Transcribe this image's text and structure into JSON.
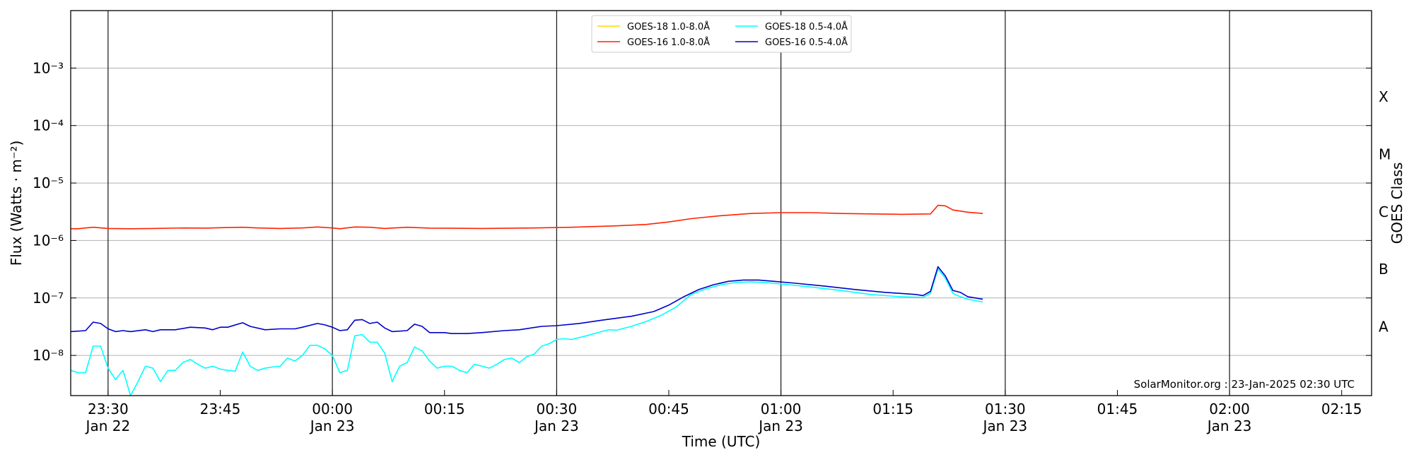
{
  "chart_data": {
    "type": "line",
    "xlabel": "Time (UTC)",
    "ylabel": "Flux (Watts · m⁻²)",
    "ylabel_right": "GOES Class",
    "y_scale": "log",
    "ylim": [
      2e-09,
      0.01
    ],
    "xlim": [
      "2025-01-22T23:25",
      "2025-01-23T02:19"
    ],
    "grid": "horizontal at decades",
    "legend_position": "top-center",
    "credit": "SolarMonitor.org : 23-Jan-2025 02:30 UTC",
    "y_ticks": [
      {
        "value": 1e-08,
        "label": "10⁻⁸"
      },
      {
        "value": 1e-07,
        "label": "10⁻⁷"
      },
      {
        "value": 1e-06,
        "label": "10⁻⁶"
      },
      {
        "value": 1e-05,
        "label": "10⁻⁵"
      },
      {
        "value": 0.0001,
        "label": "10⁻⁴"
      },
      {
        "value": 0.001,
        "label": "10⁻³"
      }
    ],
    "x_ticks": [
      {
        "time": "2025-01-22T23:30",
        "label": "23:30",
        "sublabel": "Jan 22",
        "vline": true
      },
      {
        "time": "2025-01-22T23:45",
        "label": "23:45",
        "sublabel": "",
        "vline": false
      },
      {
        "time": "2025-01-23T00:00",
        "label": "00:00",
        "sublabel": "Jan 23",
        "vline": true
      },
      {
        "time": "2025-01-23T00:15",
        "label": "00:15",
        "sublabel": "",
        "vline": false
      },
      {
        "time": "2025-01-23T00:30",
        "label": "00:30",
        "sublabel": "Jan 23",
        "vline": true
      },
      {
        "time": "2025-01-23T00:45",
        "label": "00:45",
        "sublabel": "",
        "vline": false
      },
      {
        "time": "2025-01-23T01:00",
        "label": "01:00",
        "sublabel": "Jan 23",
        "vline": true
      },
      {
        "time": "2025-01-23T01:15",
        "label": "01:15",
        "sublabel": "",
        "vline": false
      },
      {
        "time": "2025-01-23T01:30",
        "label": "01:30",
        "sublabel": "Jan 23",
        "vline": true
      },
      {
        "time": "2025-01-23T01:45",
        "label": "01:45",
        "sublabel": "",
        "vline": false
      },
      {
        "time": "2025-01-23T02:00",
        "label": "02:00",
        "sublabel": "Jan 23",
        "vline": true
      },
      {
        "time": "2025-01-23T02:15",
        "label": "02:15",
        "sublabel": "",
        "vline": false
      }
    ],
    "goes_classes": [
      {
        "label": "A",
        "value": 3.16e-08
      },
      {
        "label": "B",
        "value": 3.16e-07
      },
      {
        "label": "C",
        "value": 3.16e-06
      },
      {
        "label": "M",
        "value": 3.16e-05
      },
      {
        "label": "X",
        "value": 0.000316
      }
    ],
    "series": [
      {
        "name": "GOES-18 1.0-8.0Å",
        "color": "#ffd700",
        "points": []
      },
      {
        "name": "GOES-18 0.5-4.0Å",
        "color": "#00ffff",
        "points": [
          [
            "2025-01-22T23:25",
            5.5e-09
          ],
          [
            "2025-01-22T23:26",
            5e-09
          ],
          [
            "2025-01-22T23:27",
            5e-09
          ],
          [
            "2025-01-22T23:28",
            1.45e-08
          ],
          [
            "2025-01-22T23:29",
            1.45e-08
          ],
          [
            "2025-01-22T23:30",
            6e-09
          ],
          [
            "2025-01-22T23:31",
            3.8e-09
          ],
          [
            "2025-01-22T23:32",
            5.5e-09
          ],
          [
            "2025-01-22T23:33",
            2e-09
          ],
          [
            "2025-01-22T23:34",
            3.5e-09
          ],
          [
            "2025-01-22T23:35",
            6.5e-09
          ],
          [
            "2025-01-22T23:36",
            6e-09
          ],
          [
            "2025-01-22T23:37",
            3.5e-09
          ],
          [
            "2025-01-22T23:38",
            5.5e-09
          ],
          [
            "2025-01-22T23:39",
            5.5e-09
          ],
          [
            "2025-01-22T23:40",
            7.5e-09
          ],
          [
            "2025-01-22T23:41",
            8.5e-09
          ],
          [
            "2025-01-22T23:42",
            7e-09
          ],
          [
            "2025-01-22T23:43",
            6e-09
          ],
          [
            "2025-01-22T23:44",
            6.5e-09
          ],
          [
            "2025-01-22T23:45",
            5.8e-09
          ],
          [
            "2025-01-22T23:46",
            5.5e-09
          ],
          [
            "2025-01-22T23:47",
            5.3e-09
          ],
          [
            "2025-01-22T23:48",
            1.15e-08
          ],
          [
            "2025-01-22T23:49",
            6.5e-09
          ],
          [
            "2025-01-22T23:50",
            5.5e-09
          ],
          [
            "2025-01-22T23:51",
            6e-09
          ],
          [
            "2025-01-22T23:52",
            6.3e-09
          ],
          [
            "2025-01-22T23:53",
            6.5e-09
          ],
          [
            "2025-01-22T23:54",
            9e-09
          ],
          [
            "2025-01-22T23:55",
            8e-09
          ],
          [
            "2025-01-22T23:56",
            1e-08
          ],
          [
            "2025-01-22T23:57",
            1.5e-08
          ],
          [
            "2025-01-22T23:58",
            1.5e-08
          ],
          [
            "2025-01-22T23:59",
            1.3e-08
          ],
          [
            "2025-01-23T00:00",
            1e-08
          ],
          [
            "2025-01-23T00:01",
            5e-09
          ],
          [
            "2025-01-23T00:02",
            5.5e-09
          ],
          [
            "2025-01-23T00:03",
            2.2e-08
          ],
          [
            "2025-01-23T00:04",
            2.3e-08
          ],
          [
            "2025-01-23T00:05",
            1.7e-08
          ],
          [
            "2025-01-23T00:06",
            1.7e-08
          ],
          [
            "2025-01-23T00:07",
            1.1e-08
          ],
          [
            "2025-01-23T00:08",
            3.5e-09
          ],
          [
            "2025-01-23T00:09",
            6.5e-09
          ],
          [
            "2025-01-23T00:10",
            7.5e-09
          ],
          [
            "2025-01-23T00:11",
            1.4e-08
          ],
          [
            "2025-01-23T00:12",
            1.2e-08
          ],
          [
            "2025-01-23T00:13",
            8e-09
          ],
          [
            "2025-01-23T00:14",
            6e-09
          ],
          [
            "2025-01-23T00:15",
            6.5e-09
          ],
          [
            "2025-01-23T00:16",
            6.5e-09
          ],
          [
            "2025-01-23T00:17",
            5.5e-09
          ],
          [
            "2025-01-23T00:18",
            5e-09
          ],
          [
            "2025-01-23T00:19",
            7e-09
          ],
          [
            "2025-01-23T00:20",
            6.5e-09
          ],
          [
            "2025-01-23T00:21",
            6e-09
          ],
          [
            "2025-01-23T00:22",
            7e-09
          ],
          [
            "2025-01-23T00:23",
            8.5e-09
          ],
          [
            "2025-01-23T00:24",
            9e-09
          ],
          [
            "2025-01-23T00:25",
            7.5e-09
          ],
          [
            "2025-01-23T00:26",
            9.5e-09
          ],
          [
            "2025-01-23T00:27",
            1.05e-08
          ],
          [
            "2025-01-23T00:28",
            1.45e-08
          ],
          [
            "2025-01-23T00:29",
            1.6e-08
          ],
          [
            "2025-01-23T00:30",
            1.9e-08
          ],
          [
            "2025-01-23T00:31",
            1.95e-08
          ],
          [
            "2025-01-23T00:32",
            1.9e-08
          ],
          [
            "2025-01-23T00:34",
            2.2e-08
          ],
          [
            "2025-01-23T00:36",
            2.6e-08
          ],
          [
            "2025-01-23T00:37",
            2.8e-08
          ],
          [
            "2025-01-23T00:38",
            2.75e-08
          ],
          [
            "2025-01-23T00:40",
            3.2e-08
          ],
          [
            "2025-01-23T00:42",
            3.9e-08
          ],
          [
            "2025-01-23T00:44",
            5e-08
          ],
          [
            "2025-01-23T00:46",
            7e-08
          ],
          [
            "2025-01-23T00:48",
            1.15e-07
          ],
          [
            "2025-01-23T00:50",
            1.45e-07
          ],
          [
            "2025-01-23T00:52",
            1.7e-07
          ],
          [
            "2025-01-23T00:54",
            1.85e-07
          ],
          [
            "2025-01-23T00:56",
            1.9e-07
          ],
          [
            "2025-01-23T00:58",
            1.85e-07
          ],
          [
            "2025-01-23T01:00",
            1.75e-07
          ],
          [
            "2025-01-23T01:04",
            1.55e-07
          ],
          [
            "2025-01-23T01:08",
            1.35e-07
          ],
          [
            "2025-01-23T01:12",
            1.15e-07
          ],
          [
            "2025-01-23T01:16",
            1.05e-07
          ],
          [
            "2025-01-23T01:19",
            1.02e-07
          ],
          [
            "2025-01-23T01:20",
            1.2e-07
          ],
          [
            "2025-01-23T01:21",
            3.2e-07
          ],
          [
            "2025-01-23T01:22",
            2.2e-07
          ],
          [
            "2025-01-23T01:23",
            1.2e-07
          ],
          [
            "2025-01-23T01:24",
            1.05e-07
          ],
          [
            "2025-01-23T01:25",
            9.5e-08
          ],
          [
            "2025-01-23T01:27",
            8.5e-08
          ]
        ]
      },
      {
        "name": "GOES-16 1.0-8.0Å",
        "color": "#ff2200",
        "points": [
          [
            "2025-01-22T23:25",
            1.6e-06
          ],
          [
            "2025-01-22T23:26",
            1.6e-06
          ],
          [
            "2025-01-22T23:27",
            1.65e-06
          ],
          [
            "2025-01-22T23:28",
            1.7e-06
          ],
          [
            "2025-01-22T23:30",
            1.62e-06
          ],
          [
            "2025-01-22T23:33",
            1.6e-06
          ],
          [
            "2025-01-22T23:36",
            1.62e-06
          ],
          [
            "2025-01-22T23:40",
            1.65e-06
          ],
          [
            "2025-01-22T23:43",
            1.64e-06
          ],
          [
            "2025-01-22T23:46",
            1.68e-06
          ],
          [
            "2025-01-22T23:48",
            1.7e-06
          ],
          [
            "2025-01-22T23:50",
            1.65e-06
          ],
          [
            "2025-01-22T23:53",
            1.62e-06
          ],
          [
            "2025-01-22T23:56",
            1.65e-06
          ],
          [
            "2025-01-22T23:58",
            1.72e-06
          ],
          [
            "2025-01-23T00:00",
            1.65e-06
          ],
          [
            "2025-01-23T00:01",
            1.6e-06
          ],
          [
            "2025-01-23T00:03",
            1.72e-06
          ],
          [
            "2025-01-23T00:05",
            1.7e-06
          ],
          [
            "2025-01-23T00:07",
            1.62e-06
          ],
          [
            "2025-01-23T00:10",
            1.7e-06
          ],
          [
            "2025-01-23T00:13",
            1.64e-06
          ],
          [
            "2025-01-23T00:20",
            1.62e-06
          ],
          [
            "2025-01-23T00:27",
            1.65e-06
          ],
          [
            "2025-01-23T00:32",
            1.7e-06
          ],
          [
            "2025-01-23T00:38",
            1.8e-06
          ],
          [
            "2025-01-23T00:42",
            1.9e-06
          ],
          [
            "2025-01-23T00:45",
            2.1e-06
          ],
          [
            "2025-01-23T00:48",
            2.4e-06
          ],
          [
            "2025-01-23T00:52",
            2.7e-06
          ],
          [
            "2025-01-23T00:56",
            2.95e-06
          ],
          [
            "2025-01-23T01:00",
            3.05e-06
          ],
          [
            "2025-01-23T01:04",
            3.05e-06
          ],
          [
            "2025-01-23T01:08",
            2.95e-06
          ],
          [
            "2025-01-23T01:12",
            2.9e-06
          ],
          [
            "2025-01-23T01:16",
            2.85e-06
          ],
          [
            "2025-01-23T01:20",
            2.9e-06
          ],
          [
            "2025-01-23T01:21",
            4.1e-06
          ],
          [
            "2025-01-23T01:22",
            4e-06
          ],
          [
            "2025-01-23T01:23",
            3.4e-06
          ],
          [
            "2025-01-23T01:25",
            3.1e-06
          ],
          [
            "2025-01-23T01:27",
            2.95e-06
          ]
        ]
      },
      {
        "name": "GOES-16 0.5-4.0Å",
        "color": "#0000cc",
        "points": [
          [
            "2025-01-22T23:25",
            2.6e-08
          ],
          [
            "2025-01-22T23:27",
            2.7e-08
          ],
          [
            "2025-01-22T23:28",
            3.8e-08
          ],
          [
            "2025-01-22T23:29",
            3.6e-08
          ],
          [
            "2025-01-22T23:30",
            2.9e-08
          ],
          [
            "2025-01-22T23:31",
            2.6e-08
          ],
          [
            "2025-01-22T23:32",
            2.7e-08
          ],
          [
            "2025-01-22T23:33",
            2.6e-08
          ],
          [
            "2025-01-22T23:35",
            2.8e-08
          ],
          [
            "2025-01-22T23:36",
            2.6e-08
          ],
          [
            "2025-01-22T23:37",
            2.8e-08
          ],
          [
            "2025-01-22T23:39",
            2.8e-08
          ],
          [
            "2025-01-22T23:41",
            3.1e-08
          ],
          [
            "2025-01-22T23:43",
            3e-08
          ],
          [
            "2025-01-22T23:44",
            2.8e-08
          ],
          [
            "2025-01-22T23:45",
            3.1e-08
          ],
          [
            "2025-01-22T23:46",
            3.1e-08
          ],
          [
            "2025-01-22T23:48",
            3.7e-08
          ],
          [
            "2025-01-22T23:49",
            3.2e-08
          ],
          [
            "2025-01-22T23:51",
            2.8e-08
          ],
          [
            "2025-01-22T23:53",
            2.9e-08
          ],
          [
            "2025-01-22T23:55",
            2.9e-08
          ],
          [
            "2025-01-22T23:56",
            3.1e-08
          ],
          [
            "2025-01-22T23:58",
            3.6e-08
          ],
          [
            "2025-01-22T23:59",
            3.4e-08
          ],
          [
            "2025-01-23T00:00",
            3.1e-08
          ],
          [
            "2025-01-23T00:01",
            2.7e-08
          ],
          [
            "2025-01-23T00:02",
            2.8e-08
          ],
          [
            "2025-01-23T00:03",
            4.1e-08
          ],
          [
            "2025-01-23T00:04",
            4.2e-08
          ],
          [
            "2025-01-23T00:05",
            3.6e-08
          ],
          [
            "2025-01-23T00:06",
            3.8e-08
          ],
          [
            "2025-01-23T00:07",
            3e-08
          ],
          [
            "2025-01-23T00:08",
            2.6e-08
          ],
          [
            "2025-01-23T00:10",
            2.7e-08
          ],
          [
            "2025-01-23T00:11",
            3.5e-08
          ],
          [
            "2025-01-23T00:12",
            3.2e-08
          ],
          [
            "2025-01-23T00:13",
            2.5e-08
          ],
          [
            "2025-01-23T00:15",
            2.5e-08
          ],
          [
            "2025-01-23T00:16",
            2.4e-08
          ],
          [
            "2025-01-23T00:18",
            2.4e-08
          ],
          [
            "2025-01-23T00:20",
            2.5e-08
          ],
          [
            "2025-01-23T00:23",
            2.7e-08
          ],
          [
            "2025-01-23T00:25",
            2.8e-08
          ],
          [
            "2025-01-23T00:28",
            3.2e-08
          ],
          [
            "2025-01-23T00:30",
            3.3e-08
          ],
          [
            "2025-01-23T00:33",
            3.6e-08
          ],
          [
            "2025-01-23T00:36",
            4.1e-08
          ],
          [
            "2025-01-23T00:40",
            4.8e-08
          ],
          [
            "2025-01-23T00:43",
            5.8e-08
          ],
          [
            "2025-01-23T00:45",
            7.5e-08
          ],
          [
            "2025-01-23T00:47",
            1.05e-07
          ],
          [
            "2025-01-23T00:49",
            1.4e-07
          ],
          [
            "2025-01-23T00:51",
            1.7e-07
          ],
          [
            "2025-01-23T00:53",
            1.95e-07
          ],
          [
            "2025-01-23T00:55",
            2.05e-07
          ],
          [
            "2025-01-23T00:57",
            2.05e-07
          ],
          [
            "2025-01-23T00:59",
            1.95e-07
          ],
          [
            "2025-01-23T01:02",
            1.8e-07
          ],
          [
            "2025-01-23T01:06",
            1.6e-07
          ],
          [
            "2025-01-23T01:10",
            1.4e-07
          ],
          [
            "2025-01-23T01:14",
            1.25e-07
          ],
          [
            "2025-01-23T01:18",
            1.15e-07
          ],
          [
            "2025-01-23T01:19",
            1.1e-07
          ],
          [
            "2025-01-23T01:20",
            1.3e-07
          ],
          [
            "2025-01-23T01:21",
            3.5e-07
          ],
          [
            "2025-01-23T01:22",
            2.4e-07
          ],
          [
            "2025-01-23T01:23",
            1.35e-07
          ],
          [
            "2025-01-23T01:24",
            1.25e-07
          ],
          [
            "2025-01-23T01:25",
            1.05e-07
          ],
          [
            "2025-01-23T01:27",
            9.5e-08
          ]
        ]
      }
    ]
  }
}
